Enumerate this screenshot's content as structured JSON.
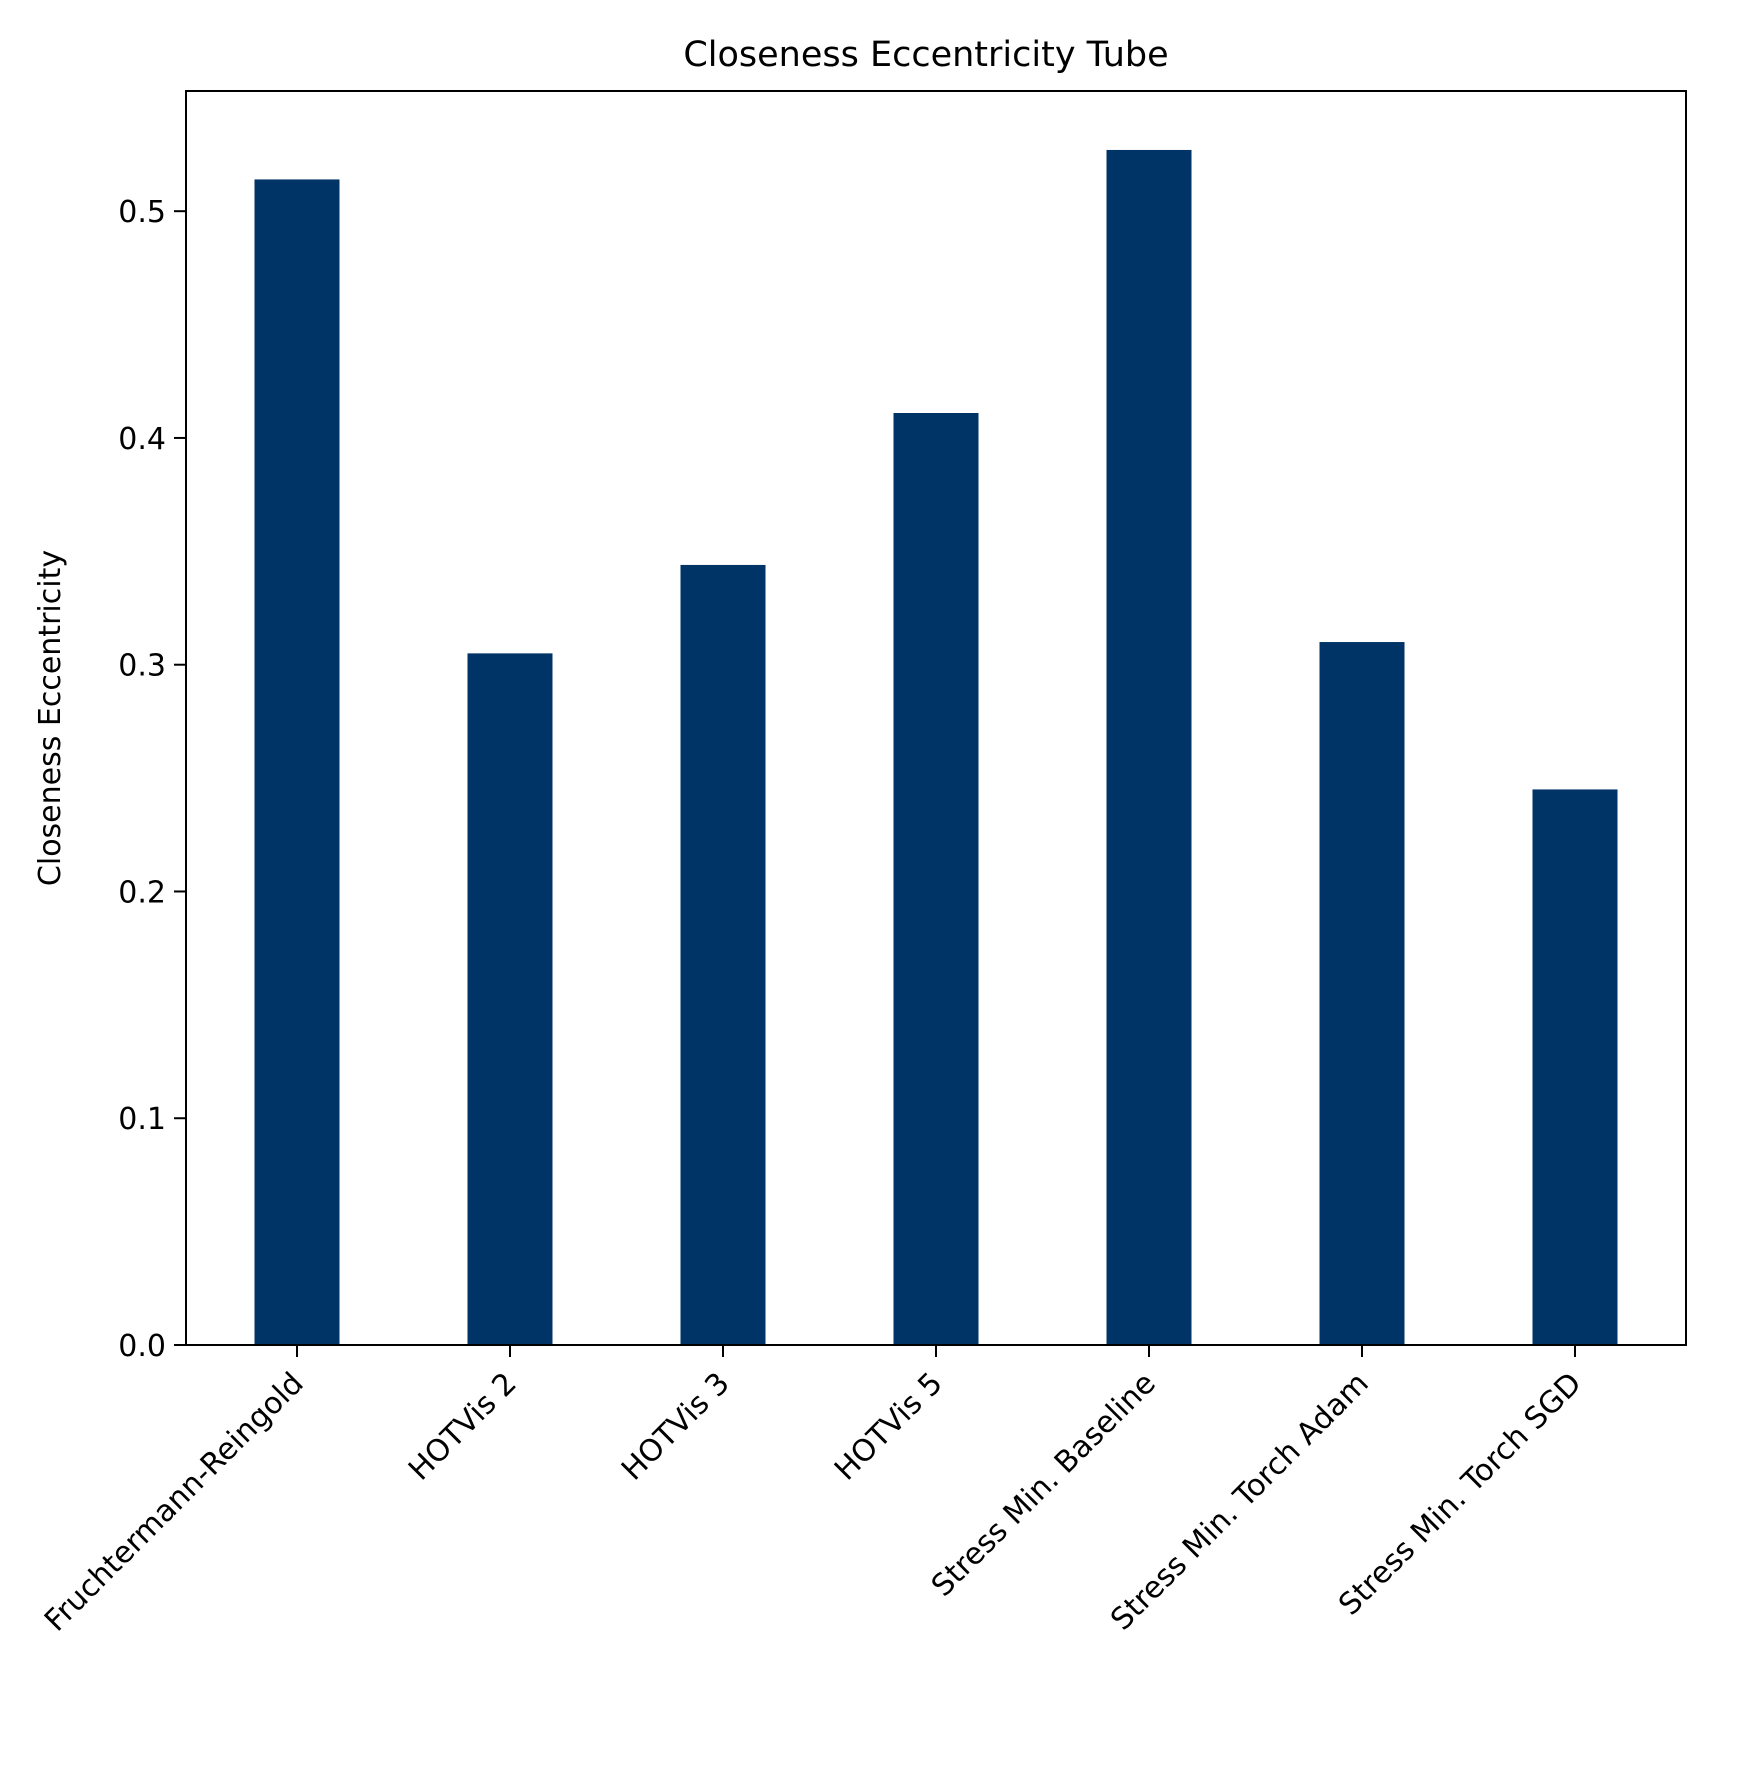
{
  "chart_data": {
    "type": "bar",
    "title": "Closeness Eccentricity Tube",
    "xlabel": "",
    "ylabel": "Closeness Eccentricity",
    "categories": [
      "Fruchtermann-Reingold",
      "HOTVis 2",
      "HOTVis 3",
      "HOTVis 5",
      "Stress Min. Baseline",
      "Stress Min. Torch Adam",
      "Stress Min. Torch SGD"
    ],
    "values": [
      0.514,
      0.305,
      0.344,
      0.411,
      0.527,
      0.31,
      0.245
    ],
    "ylim": [
      0,
      0.553
    ],
    "yticks": [
      0.0,
      0.1,
      0.2,
      0.3,
      0.4,
      0.5
    ],
    "ytick_labels": [
      "0.0",
      "0.1",
      "0.2",
      "0.3",
      "0.4",
      "0.5"
    ],
    "bar_color": "#003366",
    "grid": false,
    "legend": "none"
  }
}
